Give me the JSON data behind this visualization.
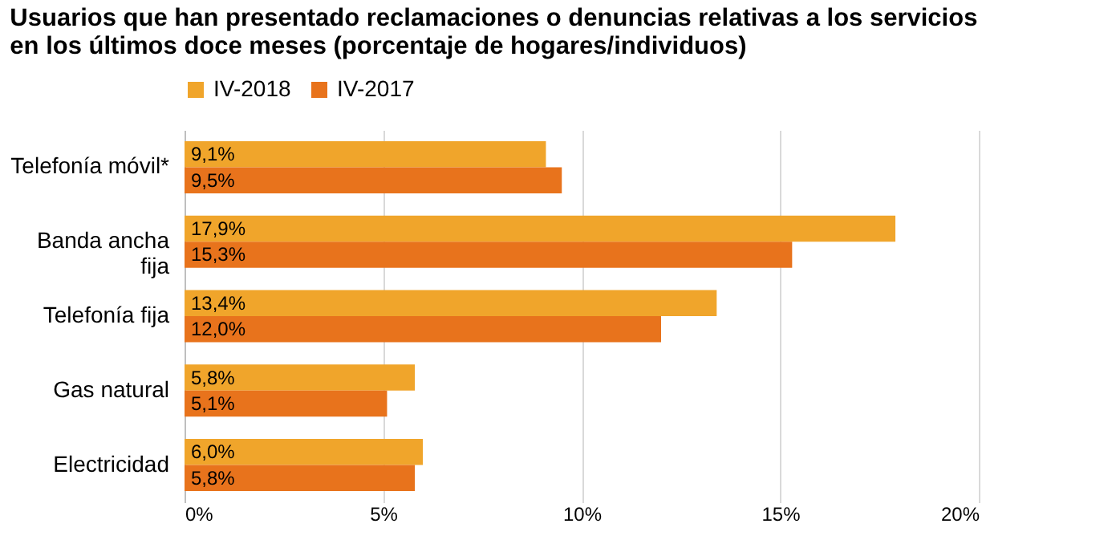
{
  "chart_data": {
    "type": "bar",
    "orientation": "horizontal",
    "title": "Usuarios que han presentado reclamaciones o denuncias relativas a los servicios\nen los últimos doce meses (porcentaje de hogares/individuos)",
    "categories": [
      "Telefonía móvil*",
      "Banda ancha\nfija",
      "Telefonía fija",
      "Gas natural",
      "Electricidad"
    ],
    "series": [
      {
        "name": "IV-2018",
        "color": "#f0a52b",
        "values": [
          9.1,
          17.9,
          13.4,
          5.8,
          6.0
        ],
        "value_labels": [
          "9,1%",
          "17,9%",
          "13,4%",
          "5,8%",
          "6,0%"
        ]
      },
      {
        "name": "IV-2017",
        "color": "#e8731c",
        "values": [
          9.5,
          15.3,
          12.0,
          5.1,
          5.8
        ],
        "value_labels": [
          "9,5%",
          "15,3%",
          "12,0%",
          "5,1%",
          "5,8%"
        ]
      }
    ],
    "xlim": [
      0,
      20
    ],
    "xticks": [
      {
        "value": 0,
        "label": "0%"
      },
      {
        "value": 5,
        "label": "5%"
      },
      {
        "value": 10,
        "label": "10%"
      },
      {
        "value": 15,
        "label": "15%"
      },
      {
        "value": 20,
        "label": "20%"
      }
    ],
    "grid": "x",
    "legend": "top"
  }
}
